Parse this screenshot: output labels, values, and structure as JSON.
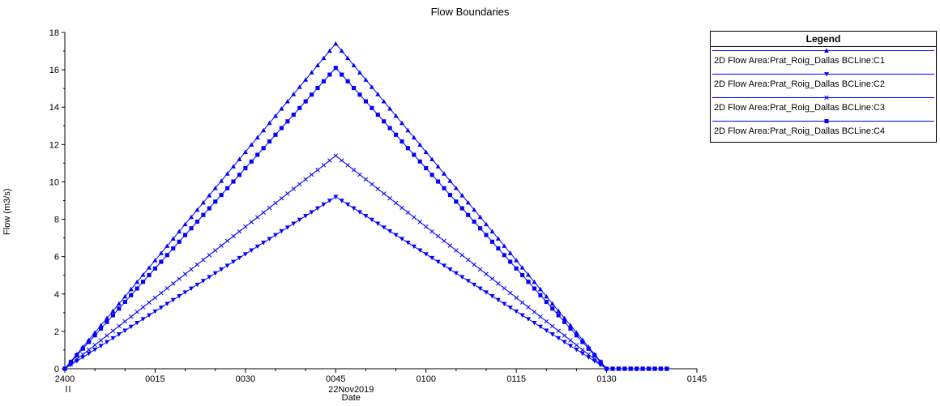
{
  "chart_data": {
    "type": "line",
    "title": "Flow Boundaries",
    "xlabel": "Date",
    "x_date_label": "22Nov2019",
    "ylabel": "Flow (m3/s)",
    "x_ticks": [
      "2400",
      "0015",
      "0030",
      "0045",
      "0100",
      "0115",
      "0130",
      "0145"
    ],
    "x_tick_minutes": [
      0,
      15,
      30,
      45,
      60,
      75,
      90,
      105
    ],
    "xlim": [
      0,
      105
    ],
    "y_ticks": [
      0,
      2,
      4,
      6,
      8,
      10,
      12,
      14,
      16,
      18
    ],
    "ylim": [
      0,
      18
    ],
    "grid": false,
    "legend_title": "Legend",
    "legend_position": "right",
    "line_color": "#0000ff",
    "series": [
      {
        "name": "2D Flow Area:Prat_Roig_Dallas  BCLine:C1",
        "marker": "triangle-up",
        "x": [
          0,
          45,
          90,
          100
        ],
        "y": [
          0,
          17.4,
          0,
          0
        ]
      },
      {
        "name": "2D Flow Area:Prat_Roig_Dallas  BCLine:C2",
        "marker": "triangle-down",
        "x": [
          0,
          45,
          90,
          100
        ],
        "y": [
          0,
          9.2,
          0,
          0
        ]
      },
      {
        "name": "2D Flow Area:Prat_Roig_Dallas  BCLine:C3",
        "marker": "x",
        "x": [
          0,
          45,
          90,
          100
        ],
        "y": [
          0,
          11.4,
          0,
          0
        ]
      },
      {
        "name": "2D Flow Area:Prat_Roig_Dallas  BCLine:C4",
        "marker": "square",
        "x": [
          0,
          45,
          90,
          100
        ],
        "y": [
          0,
          16.1,
          0,
          0
        ]
      }
    ]
  }
}
